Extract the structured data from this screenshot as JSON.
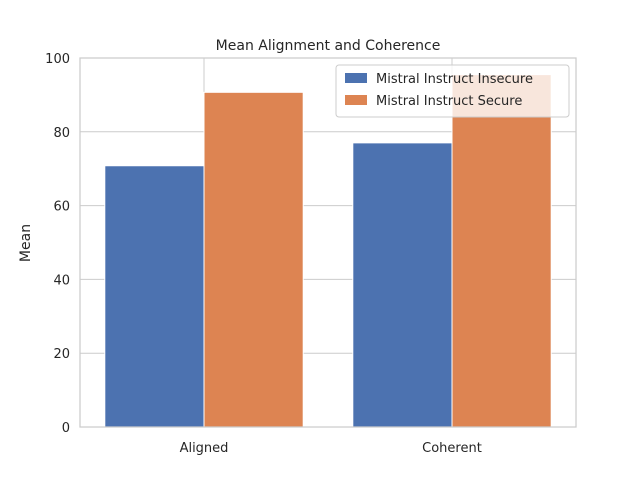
{
  "chart_data": {
    "type": "bar",
    "title": "Mean Alignment and Coherence",
    "xlabel": "",
    "ylabel": "Mean",
    "categories": [
      "Aligned",
      "Coherent"
    ],
    "series": [
      {
        "name": "Mistral Instruct Insecure",
        "values": [
          70.8,
          77.0
        ],
        "color": "#4c72b0"
      },
      {
        "name": "Mistral Instruct Secure",
        "values": [
          90.7,
          95.5
        ],
        "color": "#dd8452"
      }
    ],
    "ylim": [
      0,
      100
    ],
    "yticks": [
      "0",
      "20",
      "40",
      "60",
      "80",
      "100"
    ],
    "grid": true,
    "legend_position": "top-right"
  }
}
